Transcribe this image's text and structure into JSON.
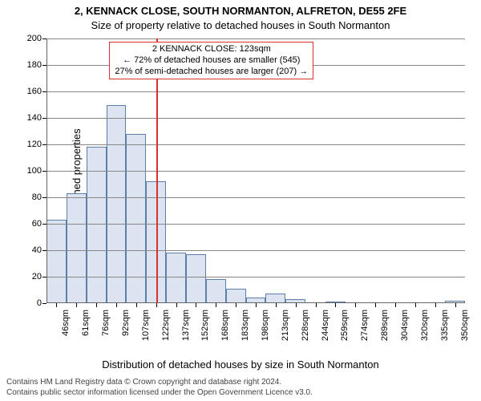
{
  "chart": {
    "type": "histogram",
    "title_line1": "2, KENNACK CLOSE, SOUTH NORMANTON, ALFRETON, DE55 2FE",
    "title_line2": "Size of property relative to detached houses in South Normanton",
    "title_fontsize": 13,
    "ylabel": "Number of detached properties",
    "xlabel": "Distribution of detached houses by size in South Normanton",
    "label_fontsize": 13,
    "background_color": "#ffffff",
    "grid_color": "#888888",
    "axis_color": "#666666",
    "ylim": [
      0,
      200
    ],
    "ytick_step": 20,
    "yticks": [
      0,
      20,
      40,
      60,
      80,
      100,
      120,
      140,
      160,
      180,
      200
    ],
    "xtick_labels": [
      "46sqm",
      "61sqm",
      "76sqm",
      "92sqm",
      "107sqm",
      "122sqm",
      "137sqm",
      "152sqm",
      "168sqm",
      "183sqm",
      "198sqm",
      "213sqm",
      "228sqm",
      "244sqm",
      "259sqm",
      "274sqm",
      "289sqm",
      "304sqm",
      "320sqm",
      "335sqm",
      "350sqm"
    ],
    "bar_fill": "#dbe4f0",
    "bar_stroke": "#5b7fa6",
    "bars": [
      63,
      83,
      118,
      150,
      128,
      92,
      38,
      37,
      18,
      11,
      4,
      7,
      3,
      0,
      1,
      0,
      0,
      0,
      0,
      0,
      2
    ],
    "bar_width_ratio": 1.0,
    "ref_line": {
      "value_sqm": 123,
      "color": "#d93030",
      "width": 2
    },
    "annotation": {
      "line1": "2 KENNACK CLOSE: 123sqm",
      "line2": "← 72% of detached houses are smaller (545)",
      "line3": "27% of semi-detached houses are larger (207) →",
      "border_color": "#d93030",
      "bg_color": "#ffffff",
      "fontsize": 11
    },
    "attribution": {
      "line1": "Contains HM Land Registry data © Crown copyright and database right 2024.",
      "line2": "Contains public sector information licensed under the Open Government Licence v3.0."
    }
  }
}
